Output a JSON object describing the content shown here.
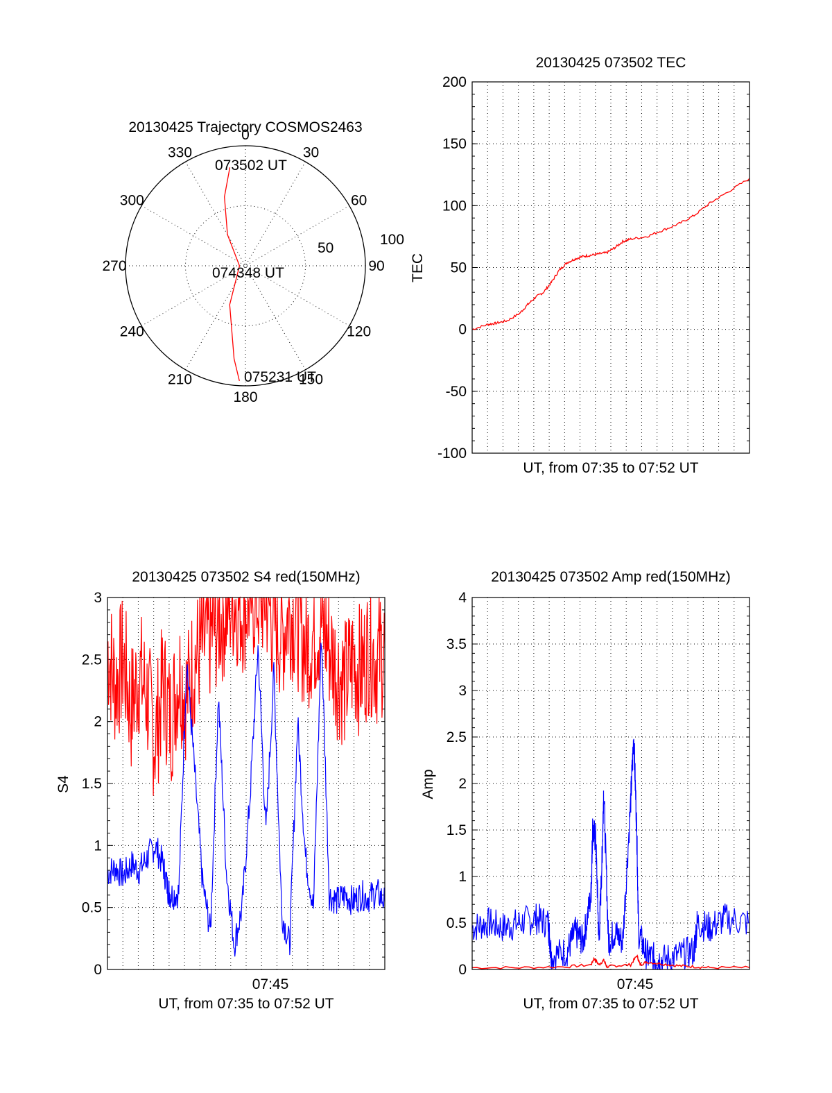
{
  "colors": {
    "red": "#ff0000",
    "blue": "#0000ff",
    "axis": "#000000"
  },
  "chart_data": [
    {
      "id": "polar",
      "type": "scatter",
      "subtype": "polar-trajectory",
      "title": "20130425 Trajectory COSMOS2463",
      "angle_labels": [
        "0",
        "30",
        "60",
        "90",
        "120",
        "150",
        "180",
        "210",
        "240",
        "270",
        "300",
        "330"
      ],
      "radial_labels": [
        "50",
        "100"
      ],
      "rmax": 100,
      "point_labels": [
        "073502 UT",
        "074348 UT",
        "075231 UT"
      ],
      "trajectory": {
        "color": "red",
        "points": [
          [
            -9,
            83
          ],
          [
            -17,
            60
          ],
          [
            -30,
            30
          ],
          [
            -90,
            5
          ],
          [
            -158,
            35
          ],
          [
            -173,
            78
          ],
          [
            -177,
            96
          ]
        ]
      }
    },
    {
      "id": "tec",
      "type": "line",
      "title": "20130425 073502 TEC",
      "xlabel": "UT, from 07:35 to 07:52 UT",
      "ylabel": "TEC",
      "ylim": [
        -100,
        200
      ],
      "yticks": [
        "200",
        "150",
        "100",
        "50",
        "0",
        "-50",
        "-100"
      ],
      "xlim": [
        0,
        17.5
      ],
      "grid": true,
      "series": [
        {
          "color": "red",
          "x": [
            0,
            1,
            1.5,
            2.2,
            3,
            3.5,
            4,
            4.5,
            5,
            5.5,
            6,
            6.5,
            7,
            7.5,
            8,
            8.5,
            9,
            9.5,
            10,
            11,
            12,
            13,
            14,
            15,
            16,
            17.5
          ],
          "y": [
            0,
            4,
            5,
            7,
            13,
            20,
            26,
            30,
            38,
            48,
            54,
            57,
            59,
            60,
            61,
            62,
            66,
            71,
            73,
            75,
            80,
            85,
            92,
            102,
            110,
            122
          ]
        }
      ]
    },
    {
      "id": "s4",
      "type": "line",
      "title": "20130425 073502 S4 red(150MHz)",
      "xlabel": "UT, from 07:35 to 07:52 UT",
      "ylabel": "S4",
      "ylim": [
        0,
        3
      ],
      "yticks": [
        "3",
        "2.5",
        "2",
        "1.5",
        "1",
        "0.5",
        "0"
      ],
      "xlim": [
        0,
        17.5
      ],
      "xtick_labels": [
        "07:45"
      ],
      "grid": true,
      "series": [
        {
          "color": "red",
          "x": [
            0,
            0.5,
            1,
            1.5,
            2,
            2.5,
            3,
            3.5,
            4,
            4.5,
            5,
            5.5,
            6,
            6.5,
            7,
            7.5,
            8,
            8.5,
            9,
            9.5,
            10,
            10.5,
            11,
            11.5,
            12,
            12.5,
            13,
            13.5,
            14,
            14.5,
            15,
            15.5,
            16,
            16.5,
            17,
            17.5
          ],
          "y": [
            2.6,
            2.3,
            2.5,
            2.1,
            2.4,
            2.2,
            1.85,
            2.3,
            2.0,
            2.4,
            2.2,
            2.5,
            2.6,
            2.7,
            2.8,
            2.9,
            3.0,
            2.9,
            3.0,
            3.0,
            3.0,
            2.8,
            2.7,
            2.9,
            2.8,
            2.6,
            2.7,
            2.8,
            2.6,
            2.4,
            2.3,
            2.5,
            2.4,
            2.6,
            2.5,
            2.6
          ]
        },
        {
          "color": "blue",
          "x": [
            0,
            0.5,
            1,
            1.5,
            2,
            2.5,
            3,
            3.5,
            3.8,
            4,
            4.5,
            5,
            5.5,
            6,
            6.5,
            7,
            7.5,
            8,
            8.5,
            9,
            9.5,
            10,
            10.5,
            11,
            11.5,
            12,
            12.5,
            13,
            13.5,
            14,
            14.5,
            15,
            15.5,
            16,
            16.5,
            17,
            17.5
          ],
          "y": [
            0.78,
            0.82,
            0.75,
            0.85,
            0.8,
            0.9,
            1.0,
            0.85,
            0.65,
            0.6,
            0.62,
            2.5,
            1.6,
            0.7,
            0.3,
            2.2,
            0.8,
            0.2,
            0.5,
            1.4,
            2.6,
            1.1,
            2.4,
            0.45,
            0.2,
            2.0,
            0.9,
            0.5,
            2.7,
            0.6,
            0.55,
            0.6,
            0.55,
            0.6,
            0.58,
            0.62,
            0.55
          ]
        }
      ]
    },
    {
      "id": "amp",
      "type": "line",
      "title": "20130425 073502 Amp red(150MHz)",
      "xlabel": "UT, from 07:35 to 07:52 UT",
      "ylabel": "Amp",
      "ylim": [
        0,
        4
      ],
      "yticks": [
        "4",
        "3.5",
        "3",
        "2.5",
        "2",
        "1.5",
        "1",
        "0.5",
        "0"
      ],
      "xlim": [
        0,
        17.5
      ],
      "xtick_labels": [
        "07:45"
      ],
      "grid": true,
      "series": [
        {
          "color": "blue",
          "x": [
            0,
            1,
            2,
            3,
            4,
            4.8,
            5,
            6,
            6.5,
            7,
            7.5,
            7.6,
            7.8,
            8,
            8.2,
            8.3,
            8.6,
            9,
            9.5,
            10,
            10.2,
            10.4,
            10.5,
            11,
            11.5,
            12,
            13,
            14,
            14.2,
            15,
            16,
            17.5
          ],
          "y": [
            0.45,
            0.5,
            0.45,
            0.5,
            0.55,
            0.5,
            0.15,
            0.2,
            0.4,
            0.3,
            0.8,
            1.5,
            1.4,
            0.3,
            1.2,
            1.95,
            0.3,
            0.4,
            0.3,
            1.8,
            2.52,
            1.4,
            0.4,
            0.15,
            0.12,
            0.1,
            0.15,
            0.2,
            0.5,
            0.45,
            0.55,
            0.5
          ]
        },
        {
          "color": "red",
          "x": [
            0,
            3,
            6,
            7.5,
            7.7,
            8,
            8.3,
            8.5,
            9,
            10,
            10.4,
            10.6,
            11,
            12,
            13,
            14,
            15,
            17.5
          ],
          "y": [
            0.02,
            0.02,
            0.03,
            0.05,
            0.12,
            0.05,
            0.1,
            0.03,
            0.04,
            0.05,
            0.15,
            0.05,
            0.08,
            0.06,
            0.04,
            0.03,
            0.02,
            0.02
          ]
        }
      ]
    }
  ]
}
